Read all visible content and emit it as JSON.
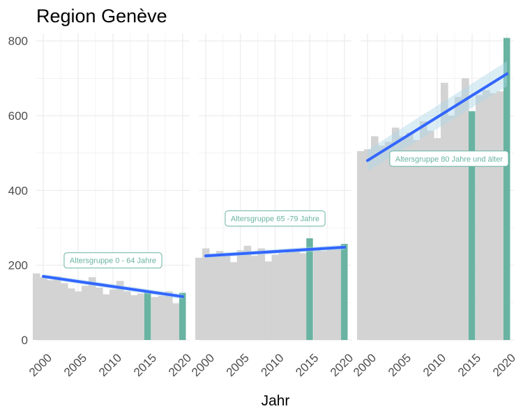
{
  "chart_data": {
    "type": "bar",
    "title": "Region Genève",
    "xlabel": "Jahr",
    "ylabel": "",
    "x": [
      1999,
      2000,
      2001,
      2002,
      2003,
      2004,
      2005,
      2006,
      2007,
      2008,
      2009,
      2010,
      2011,
      2012,
      2013,
      2014,
      2015,
      2016,
      2017,
      2018,
      2019,
      2020
    ],
    "xlim": [
      1999,
      2021
    ],
    "xticks": [
      2000,
      2005,
      2010,
      2015,
      2020
    ],
    "ylim": [
      0,
      820
    ],
    "yticks": [
      0,
      200,
      400,
      600,
      800
    ],
    "grid": true,
    "colors": {
      "bars": "#d3d3d3",
      "highlight": "#69b3a2",
      "trend": "#3366ff",
      "band": "#add8e6",
      "panel_bg": "#ffffff",
      "grid": "#ebebeb"
    },
    "highlight_years": [
      2015,
      2020
    ],
    "panels": [
      {
        "label": "Altersgruppe 0 - 64 Jahre",
        "values": [
          178,
          168,
          160,
          170,
          152,
          138,
          130,
          145,
          168,
          140,
          122,
          135,
          158,
          130,
          120,
          124,
          128,
          115,
          118,
          130,
          98,
          126
        ],
        "trend": [
          170,
          116
        ]
      },
      {
        "label": "Altersgruppe 65 -79 Jahre",
        "values": [
          220,
          245,
          230,
          238,
          225,
          208,
          240,
          252,
          225,
          245,
          210,
          228,
          232,
          235,
          240,
          232,
          272,
          245,
          238,
          242,
          250,
          257
        ],
        "trend": [
          225,
          248
        ]
      },
      {
        "label": "Altersgruppe 80 Jahre und älter",
        "values": [
          505,
          510,
          545,
          520,
          530,
          568,
          545,
          555,
          535,
          585,
          560,
          540,
          688,
          600,
          650,
          700,
          612,
          655,
          668,
          660,
          665,
          808
        ],
        "trend": [
          480,
          712
        ]
      }
    ]
  }
}
